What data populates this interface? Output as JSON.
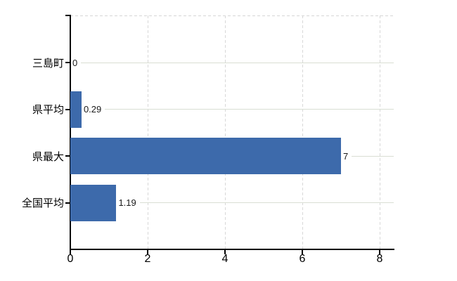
{
  "chart_data": {
    "type": "bar",
    "orientation": "horizontal",
    "title": "",
    "categories": [
      "三島町",
      "県平均",
      "県最大",
      "全国平均"
    ],
    "values": [
      0,
      0.29,
      7,
      1.19
    ],
    "value_labels": [
      "0",
      "0.29",
      "7",
      "1.19"
    ],
    "x_ticks": [
      "0",
      "2",
      "4",
      "6",
      "8"
    ],
    "x_tick_values": [
      0,
      2,
      4,
      6,
      8
    ],
    "xlim": [
      0,
      8.4
    ],
    "grid": true,
    "legend": false,
    "bar_color": "#3d6aab",
    "gridline_color": "#d8d8d8",
    "leader_line_color": "#d9ded3",
    "axis_color": "#000000"
  }
}
